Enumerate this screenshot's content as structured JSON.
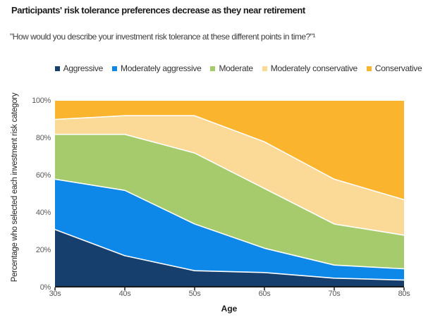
{
  "header": {
    "title": "Participants' risk tolerance preferences decrease as they near retirement",
    "subtitle": "\"How would you describe your investment risk tolerance at these different points in time?\"¹"
  },
  "chart_data": {
    "type": "area",
    "stacked": true,
    "title": "Participants' risk tolerance preferences decrease as they near retirement",
    "categories": [
      "30s",
      "40s",
      "50s",
      "60s",
      "70s",
      "80s"
    ],
    "series": [
      {
        "name": "Aggressive",
        "color": "#173F6E",
        "values": [
          31,
          17,
          9,
          8,
          5,
          4
        ]
      },
      {
        "name": "Moderately aggressive",
        "color": "#0D87E8",
        "values": [
          27,
          35,
          25,
          13,
          7,
          6
        ]
      },
      {
        "name": "Moderate",
        "color": "#A5CB6C",
        "values": [
          24,
          30,
          38,
          32,
          22,
          18
        ]
      },
      {
        "name": "Moderately conservative",
        "color": "#FBD996",
        "values": [
          8,
          10,
          20,
          25,
          24,
          19
        ]
      },
      {
        "name": "Conservative",
        "color": "#FAB42D",
        "values": [
          10,
          8,
          8,
          22,
          42,
          53
        ]
      }
    ],
    "xlabel": "Age",
    "ylabel": "Percentage who selected each investment risk category",
    "ylim": [
      0,
      100
    ],
    "y_ticks": [
      "100%",
      "80%",
      "60%",
      "40%",
      "20%",
      "0%"
    ],
    "units": "percent",
    "legend_position": "top",
    "grid": false,
    "separator_color": "#FFFFFF",
    "axis_color": "#1A1A1A"
  }
}
